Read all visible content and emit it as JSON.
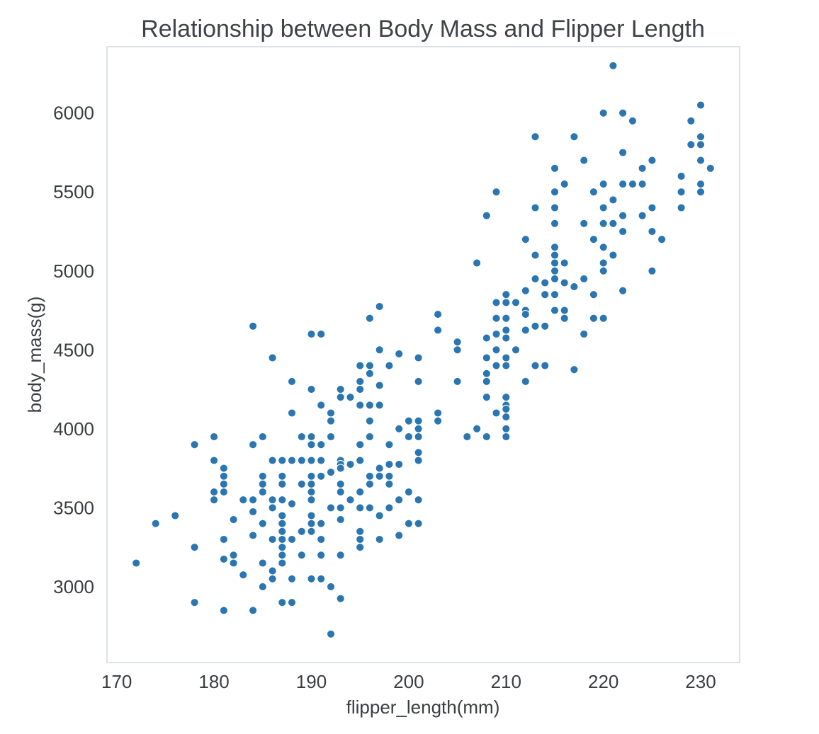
{
  "chart_data": {
    "type": "scatter",
    "title": "Relationship between Body Mass and Flipper Length",
    "xlabel": "flipper_length(mm)",
    "ylabel": "body_mass(g)",
    "xlim": [
      169,
      234
    ],
    "ylim": [
      2520,
      6420
    ],
    "xticks": [
      170,
      180,
      190,
      200,
      210,
      220,
      230
    ],
    "yticks": [
      3000,
      3500,
      4000,
      4500,
      5000,
      5500,
      6000
    ],
    "grid": false,
    "legend": "none",
    "color": "#2b76b0",
    "points": [
      [
        172,
        3150
      ],
      [
        174,
        3400
      ],
      [
        176,
        3450
      ],
      [
        178,
        3900
      ],
      [
        178,
        3250
      ],
      [
        178,
        2900
      ],
      [
        180,
        3950
      ],
      [
        180,
        3800
      ],
      [
        180,
        3600
      ],
      [
        180,
        3550
      ],
      [
        181,
        3750
      ],
      [
        181,
        3700
      ],
      [
        181,
        3650
      ],
      [
        181,
        3600
      ],
      [
        181,
        3300
      ],
      [
        181,
        3175
      ],
      [
        181,
        2850
      ],
      [
        182,
        3425
      ],
      [
        182,
        3200
      ],
      [
        182,
        3150
      ],
      [
        183,
        3550
      ],
      [
        183,
        3075
      ],
      [
        184,
        4650
      ],
      [
        184,
        3900
      ],
      [
        184,
        3550
      ],
      [
        184,
        3475
      ],
      [
        184,
        3325
      ],
      [
        184,
        2850
      ],
      [
        185,
        3950
      ],
      [
        185,
        3700
      ],
      [
        185,
        3650
      ],
      [
        185,
        3600
      ],
      [
        185,
        3400
      ],
      [
        185,
        3150
      ],
      [
        185,
        3000
      ],
      [
        186,
        4450
      ],
      [
        186,
        3800
      ],
      [
        186,
        3550
      ],
      [
        186,
        3500
      ],
      [
        186,
        3300
      ],
      [
        186,
        3100
      ],
      [
        186,
        3050
      ],
      [
        187,
        3800
      ],
      [
        187,
        3700
      ],
      [
        187,
        3650
      ],
      [
        187,
        3550
      ],
      [
        187,
        3450
      ],
      [
        187,
        3400
      ],
      [
        187,
        3350
      ],
      [
        187,
        3300
      ],
      [
        187,
        3250
      ],
      [
        187,
        3200
      ],
      [
        187,
        3150
      ],
      [
        187,
        2900
      ],
      [
        188,
        4300
      ],
      [
        188,
        4100
      ],
      [
        188,
        3800
      ],
      [
        188,
        3525
      ],
      [
        188,
        3300
      ],
      [
        188,
        3050
      ],
      [
        188,
        2900
      ],
      [
        189,
        3950
      ],
      [
        189,
        3800
      ],
      [
        189,
        3650
      ],
      [
        189,
        3350
      ],
      [
        189,
        3200
      ],
      [
        190,
        4600
      ],
      [
        190,
        4250
      ],
      [
        190,
        3950
      ],
      [
        190,
        3900
      ],
      [
        190,
        3800
      ],
      [
        190,
        3700
      ],
      [
        190,
        3650
      ],
      [
        190,
        3600
      ],
      [
        190,
        3550
      ],
      [
        190,
        3450
      ],
      [
        190,
        3400
      ],
      [
        190,
        3350
      ],
      [
        190,
        3050
      ],
      [
        191,
        4600
      ],
      [
        191,
        4150
      ],
      [
        191,
        3900
      ],
      [
        191,
        3800
      ],
      [
        191,
        3700
      ],
      [
        191,
        3400
      ],
      [
        191,
        3300
      ],
      [
        191,
        3200
      ],
      [
        191,
        3050
      ],
      [
        192,
        4100
      ],
      [
        192,
        4050
      ],
      [
        192,
        3950
      ],
      [
        192,
        3725
      ],
      [
        192,
        3500
      ],
      [
        192,
        3000
      ],
      [
        192,
        2700
      ],
      [
        193,
        4250
      ],
      [
        193,
        4200
      ],
      [
        193,
        3800
      ],
      [
        193,
        3775
      ],
      [
        193,
        3750
      ],
      [
        193,
        3650
      ],
      [
        193,
        3600
      ],
      [
        193,
        3500
      ],
      [
        193,
        3425
      ],
      [
        193,
        3200
      ],
      [
        193,
        2925
      ],
      [
        194,
        4200
      ],
      [
        194,
        3775
      ],
      [
        194,
        3550
      ],
      [
        195,
        4400
      ],
      [
        195,
        4300
      ],
      [
        195,
        4250
      ],
      [
        195,
        4150
      ],
      [
        195,
        3900
      ],
      [
        195,
        3800
      ],
      [
        195,
        3600
      ],
      [
        195,
        3500
      ],
      [
        195,
        3350
      ],
      [
        195,
        3300
      ],
      [
        195,
        3250
      ],
      [
        196,
        4700
      ],
      [
        196,
        4400
      ],
      [
        196,
        4350
      ],
      [
        196,
        4150
      ],
      [
        196,
        4050
      ],
      [
        196,
        3950
      ],
      [
        196,
        3700
      ],
      [
        196,
        3650
      ],
      [
        196,
        3500
      ],
      [
        197,
        4775
      ],
      [
        197,
        4500
      ],
      [
        197,
        4275
      ],
      [
        197,
        4150
      ],
      [
        197,
        3750
      ],
      [
        197,
        3700
      ],
      [
        197,
        3450
      ],
      [
        197,
        3300
      ],
      [
        198,
        4400
      ],
      [
        198,
        3900
      ],
      [
        198,
        3775
      ],
      [
        198,
        3700
      ],
      [
        198,
        3650
      ],
      [
        198,
        3500
      ],
      [
        199,
        4475
      ],
      [
        199,
        4000
      ],
      [
        199,
        3775
      ],
      [
        199,
        3550
      ],
      [
        199,
        3325
      ],
      [
        200,
        4050
      ],
      [
        200,
        3950
      ],
      [
        200,
        3600
      ],
      [
        200,
        3400
      ],
      [
        201,
        4450
      ],
      [
        201,
        4300
      ],
      [
        201,
        4050
      ],
      [
        201,
        4000
      ],
      [
        201,
        3950
      ],
      [
        201,
        3850
      ],
      [
        201,
        3800
      ],
      [
        201,
        3550
      ],
      [
        201,
        3400
      ],
      [
        203,
        4725
      ],
      [
        203,
        4625
      ],
      [
        203,
        4100
      ],
      [
        203,
        4050
      ],
      [
        205,
        4550
      ],
      [
        205,
        4500
      ],
      [
        205,
        4300
      ],
      [
        206,
        3950
      ],
      [
        207,
        5050
      ],
      [
        207,
        4000
      ],
      [
        208,
        5350
      ],
      [
        208,
        4575
      ],
      [
        208,
        4450
      ],
      [
        208,
        4350
      ],
      [
        208,
        4300
      ],
      [
        208,
        4200
      ],
      [
        208,
        3950
      ],
      [
        209,
        5500
      ],
      [
        209,
        4800
      ],
      [
        209,
        4700
      ],
      [
        209,
        4600
      ],
      [
        209,
        4500
      ],
      [
        209,
        4400
      ],
      [
        209,
        4100
      ],
      [
        210,
        4850
      ],
      [
        210,
        4800
      ],
      [
        210,
        4700
      ],
      [
        210,
        4625
      ],
      [
        210,
        4575
      ],
      [
        210,
        4450
      ],
      [
        210,
        4400
      ],
      [
        210,
        4200
      ],
      [
        210,
        4150
      ],
      [
        210,
        4125
      ],
      [
        210,
        4075
      ],
      [
        210,
        4000
      ],
      [
        210,
        3950
      ],
      [
        211,
        4800
      ],
      [
        211,
        4500
      ],
      [
        212,
        5200
      ],
      [
        212,
        4875
      ],
      [
        212,
        4750
      ],
      [
        212,
        4725
      ],
      [
        212,
        4625
      ],
      [
        212,
        4300
      ],
      [
        213,
        5850
      ],
      [
        213,
        5400
      ],
      [
        213,
        5100
      ],
      [
        213,
        4950
      ],
      [
        213,
        4650
      ],
      [
        213,
        4400
      ],
      [
        214,
        4925
      ],
      [
        214,
        4850
      ],
      [
        214,
        4650
      ],
      [
        214,
        4400
      ],
      [
        215,
        5650
      ],
      [
        215,
        5500
      ],
      [
        215,
        5400
      ],
      [
        215,
        5300
      ],
      [
        215,
        5150
      ],
      [
        215,
        5100
      ],
      [
        215,
        5050
      ],
      [
        215,
        5000
      ],
      [
        215,
        4950
      ],
      [
        215,
        4850
      ],
      [
        215,
        4750
      ],
      [
        216,
        5550
      ],
      [
        216,
        5050
      ],
      [
        216,
        4925
      ],
      [
        216,
        4750
      ],
      [
        216,
        4700
      ],
      [
        217,
        5850
      ],
      [
        217,
        4900
      ],
      [
        217,
        4375
      ],
      [
        218,
        5700
      ],
      [
        218,
        5300
      ],
      [
        218,
        4950
      ],
      [
        218,
        4600
      ],
      [
        219,
        5500
      ],
      [
        219,
        5200
      ],
      [
        219,
        4850
      ],
      [
        219,
        4700
      ],
      [
        220,
        6000
      ],
      [
        220,
        5550
      ],
      [
        220,
        5400
      ],
      [
        220,
        5300
      ],
      [
        220,
        5150
      ],
      [
        220,
        5050
      ],
      [
        220,
        5000
      ],
      [
        220,
        4700
      ],
      [
        221,
        6300
      ],
      [
        221,
        5450
      ],
      [
        221,
        5300
      ],
      [
        221,
        5100
      ],
      [
        222,
        6000
      ],
      [
        222,
        5750
      ],
      [
        222,
        5550
      ],
      [
        222,
        5350
      ],
      [
        222,
        5250
      ],
      [
        222,
        4875
      ],
      [
        223,
        5950
      ],
      [
        223,
        5550
      ],
      [
        224,
        5650
      ],
      [
        224,
        5550
      ],
      [
        224,
        5350
      ],
      [
        225,
        5700
      ],
      [
        225,
        5400
      ],
      [
        225,
        5250
      ],
      [
        225,
        5000
      ],
      [
        226,
        5200
      ],
      [
        228,
        5600
      ],
      [
        228,
        5500
      ],
      [
        228,
        5400
      ],
      [
        229,
        5950
      ],
      [
        229,
        5800
      ],
      [
        230,
        6050
      ],
      [
        230,
        5850
      ],
      [
        230,
        5800
      ],
      [
        230,
        5700
      ],
      [
        230,
        5550
      ],
      [
        230,
        5500
      ],
      [
        231,
        5650
      ]
    ]
  }
}
